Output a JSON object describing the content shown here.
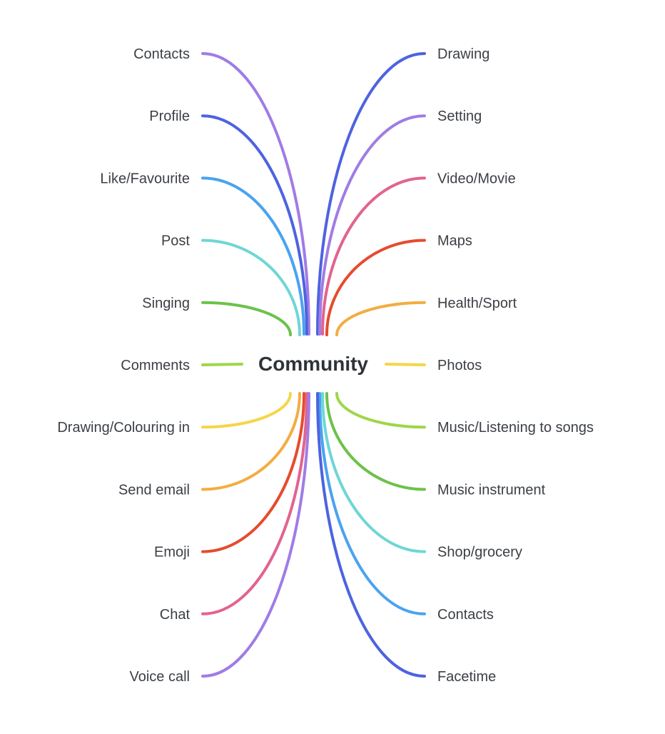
{
  "center": {
    "label": "Community"
  },
  "left_branches": [
    {
      "label": "Contacts",
      "color": "#a07ce6"
    },
    {
      "label": "Profile",
      "color": "#4d63e0"
    },
    {
      "label": "Like/Favourite",
      "color": "#4aa3ef"
    },
    {
      "label": "Post",
      "color": "#6fd6d6"
    },
    {
      "label": "Singing",
      "color": "#6cc24a"
    },
    {
      "label": "Comments",
      "color": "#9ed64a"
    },
    {
      "label": "Drawing/Colouring in",
      "color": "#f5d54a"
    },
    {
      "label": "Send email",
      "color": "#f2ad42"
    },
    {
      "label": "Emoji",
      "color": "#e64b2e"
    },
    {
      "label": "Chat",
      "color": "#e2638f"
    },
    {
      "label": "Voice call",
      "color": "#a07ce6"
    }
  ],
  "right_branches": [
    {
      "label": "Drawing",
      "color": "#4d63e0"
    },
    {
      "label": "Setting",
      "color": "#a07ce6"
    },
    {
      "label": "Video/Movie",
      "color": "#e2638f"
    },
    {
      "label": "Maps",
      "color": "#e64b2e"
    },
    {
      "label": "Health/Sport",
      "color": "#f2ad42"
    },
    {
      "label": "Photos",
      "color": "#f5d54a"
    },
    {
      "label": "Music/Listening to songs",
      "color": "#9ed64a"
    },
    {
      "label": "Music instrument",
      "color": "#6cc24a"
    },
    {
      "label": "Shop/grocery",
      "color": "#6fd6d6"
    },
    {
      "label": "Contacts",
      "color": "#4aa3ef"
    },
    {
      "label": "Facetime",
      "color": "#4d63e0"
    }
  ]
}
